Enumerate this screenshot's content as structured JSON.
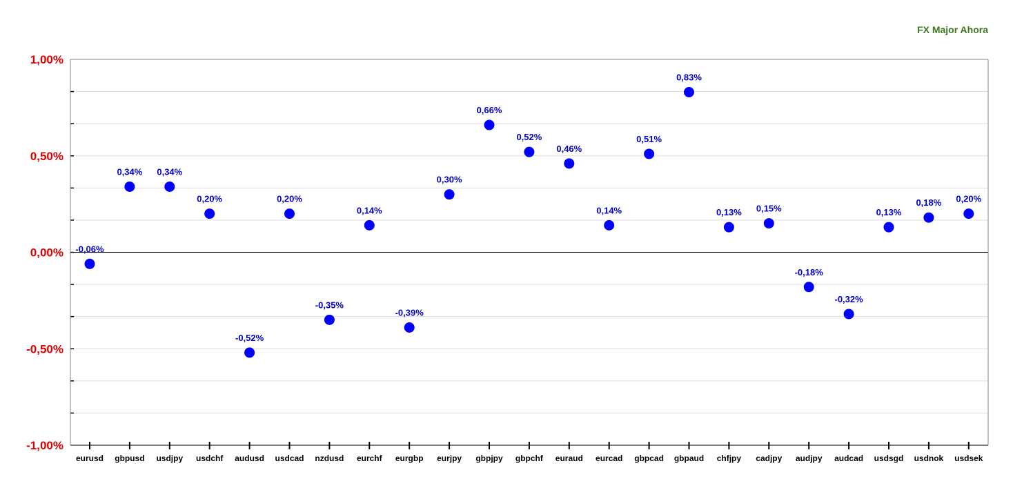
{
  "chart_data": {
    "type": "scatter",
    "title": "FX Major Ahora",
    "xlabel": "",
    "ylabel": "",
    "ylim": [
      -1.0,
      1.0
    ],
    "y_ticks": [
      {
        "value": 1.0,
        "label": "1,00%"
      },
      {
        "value": 0.5,
        "label": "0,50%"
      },
      {
        "value": 0.0,
        "label": "0,00%"
      },
      {
        "value": -0.5,
        "label": "-0,50%"
      },
      {
        "value": -1.0,
        "label": "-1,00%"
      }
    ],
    "grid": true,
    "legend": "none",
    "colors": {
      "point": "#0000ff",
      "data_label": "#0000cc",
      "y_tick_label": "#dd0000",
      "title": "#3a7a1e",
      "grid": "#dddddd",
      "axis": "#000000"
    },
    "categories": [
      "eurusd",
      "gbpusd",
      "usdjpy",
      "usdchf",
      "audusd",
      "usdcad",
      "nzdusd",
      "eurchf",
      "eurgbp",
      "eurjpy",
      "gbpjpy",
      "gbpchf",
      "euraud",
      "eurcad",
      "gbpcad",
      "gbpaud",
      "chfjpy",
      "cadjpy",
      "audjpy",
      "audcad",
      "usdsgd",
      "usdnok",
      "usdsek"
    ],
    "values": [
      -0.06,
      0.34,
      0.34,
      0.2,
      -0.52,
      0.2,
      -0.35,
      0.14,
      -0.39,
      0.3,
      0.66,
      0.52,
      0.46,
      0.14,
      0.51,
      0.83,
      0.13,
      0.15,
      -0.18,
      -0.32,
      0.13,
      0.18,
      0.2
    ],
    "value_labels": [
      "-0,06%",
      "0,34%",
      "0,34%",
      "0,20%",
      "-0,52%",
      "0,20%",
      "-0,35%",
      "0,14%",
      "-0,39%",
      "0,30%",
      "0,66%",
      "0,52%",
      "0,46%",
      "0,14%",
      "0,51%",
      "0,83%",
      "0,13%",
      "0,15%",
      "-0,18%",
      "-0,32%",
      "0,13%",
      "0,18%",
      "0,20%"
    ]
  }
}
